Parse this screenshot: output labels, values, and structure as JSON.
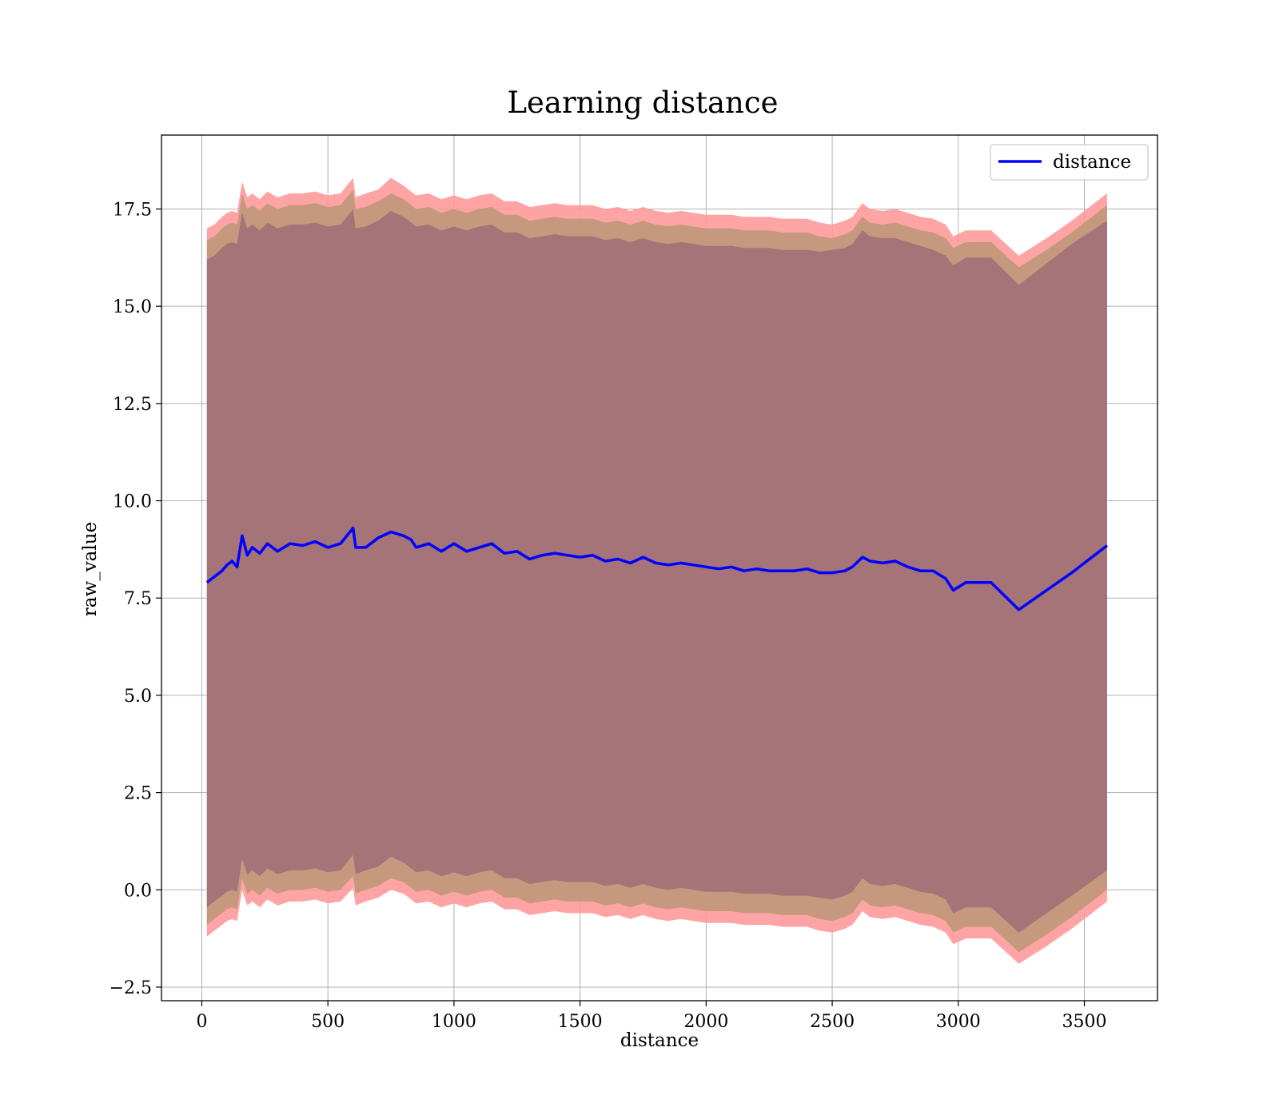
{
  "chart_data": {
    "type": "line",
    "title": "Learning distance",
    "xlabel": "distance",
    "ylabel": "raw_value",
    "xlim": [
      -160,
      3790
    ],
    "ylim": [
      -2.85,
      19.4
    ],
    "xticks": [
      0,
      500,
      1000,
      1500,
      2000,
      2500,
      3000,
      3500
    ],
    "yticks": [
      -2.5,
      0.0,
      2.5,
      5.0,
      7.5,
      10.0,
      12.5,
      15.0,
      17.5
    ],
    "xtick_labels": [
      "0",
      "500",
      "1000",
      "1500",
      "2000",
      "2500",
      "3000",
      "3500"
    ],
    "ytick_labels": [
      "−2.5",
      "0.0",
      "2.5",
      "5.0",
      "7.5",
      "10.0",
      "12.5",
      "15.0",
      "17.5"
    ],
    "grid": true,
    "legend": {
      "position": "upper-right",
      "entries": [
        "distance"
      ]
    },
    "colors": {
      "line": "#0000ff",
      "outer_band": "#ff9a9a",
      "middle_band": "#c0987a",
      "inner_band": "#a07078",
      "grid": "#b0b0b0"
    },
    "series": [
      {
        "name": "distance",
        "x": [
          20,
          50,
          80,
          100,
          120,
          140,
          160,
          180,
          200,
          230,
          260,
          300,
          350,
          400,
          450,
          500,
          550,
          600,
          610,
          650,
          700,
          750,
          800,
          830,
          850,
          900,
          950,
          1000,
          1050,
          1100,
          1150,
          1200,
          1250,
          1300,
          1350,
          1400,
          1450,
          1500,
          1550,
          1600,
          1650,
          1700,
          1750,
          1800,
          1850,
          1900,
          1950,
          2000,
          2050,
          2100,
          2150,
          2200,
          2250,
          2300,
          2350,
          2400,
          2450,
          2500,
          2550,
          2580,
          2620,
          2650,
          2700,
          2750,
          2800,
          2850,
          2900,
          2950,
          2980,
          3030,
          3130,
          3240,
          3350,
          3450,
          3590
        ],
        "y": [
          7.9,
          8.05,
          8.2,
          8.35,
          8.45,
          8.3,
          9.1,
          8.6,
          8.8,
          8.65,
          8.9,
          8.7,
          8.9,
          8.85,
          8.95,
          8.8,
          8.9,
          9.3,
          8.8,
          8.8,
          9.05,
          9.2,
          9.1,
          9.0,
          8.8,
          8.9,
          8.7,
          8.9,
          8.7,
          8.8,
          8.9,
          8.65,
          8.7,
          8.5,
          8.6,
          8.65,
          8.6,
          8.55,
          8.6,
          8.45,
          8.5,
          8.4,
          8.55,
          8.4,
          8.35,
          8.4,
          8.35,
          8.3,
          8.25,
          8.3,
          8.2,
          8.25,
          8.2,
          8.2,
          8.2,
          8.25,
          8.15,
          8.15,
          8.2,
          8.3,
          8.55,
          8.45,
          8.4,
          8.45,
          8.3,
          8.2,
          8.2,
          8.0,
          7.7,
          7.9,
          7.9,
          7.2,
          7.7,
          8.15,
          8.85
        ]
      }
    ],
    "bands": [
      {
        "upper": [
          17.0,
          17.1,
          17.3,
          17.4,
          17.45,
          17.4,
          18.2,
          17.8,
          17.9,
          17.75,
          17.95,
          17.8,
          17.9,
          17.9,
          17.95,
          17.85,
          17.9,
          18.3,
          17.8,
          17.9,
          18.0,
          18.3,
          18.1,
          17.95,
          17.85,
          17.9,
          17.75,
          17.85,
          17.75,
          17.85,
          17.9,
          17.7,
          17.7,
          17.55,
          17.6,
          17.65,
          17.6,
          17.6,
          17.6,
          17.5,
          17.55,
          17.45,
          17.55,
          17.45,
          17.4,
          17.45,
          17.4,
          17.35,
          17.35,
          17.35,
          17.3,
          17.3,
          17.3,
          17.25,
          17.25,
          17.25,
          17.15,
          17.1,
          17.2,
          17.3,
          17.65,
          17.5,
          17.45,
          17.5,
          17.4,
          17.3,
          17.25,
          17.1,
          16.8,
          16.95,
          16.95,
          16.3,
          16.75,
          17.2,
          17.9
        ],
        "lower": [
          -1.2,
          -1.05,
          -0.9,
          -0.8,
          -0.75,
          -0.8,
          0.0,
          -0.4,
          -0.3,
          -0.45,
          -0.25,
          -0.4,
          -0.3,
          -0.3,
          -0.25,
          -0.35,
          -0.3,
          0.05,
          -0.4,
          -0.3,
          -0.2,
          0.0,
          -0.1,
          -0.25,
          -0.35,
          -0.3,
          -0.45,
          -0.35,
          -0.45,
          -0.35,
          -0.3,
          -0.5,
          -0.5,
          -0.65,
          -0.6,
          -0.55,
          -0.6,
          -0.6,
          -0.6,
          -0.7,
          -0.65,
          -0.75,
          -0.65,
          -0.75,
          -0.8,
          -0.75,
          -0.8,
          -0.85,
          -0.85,
          -0.85,
          -0.9,
          -0.9,
          -0.9,
          -0.95,
          -0.95,
          -0.95,
          -1.05,
          -1.1,
          -1.0,
          -0.9,
          -0.55,
          -0.7,
          -0.75,
          -0.7,
          -0.8,
          -0.9,
          -0.95,
          -1.1,
          -1.4,
          -1.25,
          -1.25,
          -1.9,
          -1.45,
          -1.0,
          -0.3
        ]
      },
      {
        "upper": [
          16.7,
          16.8,
          17.0,
          17.1,
          17.15,
          17.1,
          17.9,
          17.5,
          17.6,
          17.45,
          17.65,
          17.5,
          17.6,
          17.6,
          17.65,
          17.55,
          17.6,
          18.0,
          17.5,
          17.55,
          17.7,
          17.9,
          17.75,
          17.6,
          17.5,
          17.55,
          17.4,
          17.5,
          17.4,
          17.5,
          17.55,
          17.35,
          17.35,
          17.2,
          17.25,
          17.3,
          17.25,
          17.25,
          17.25,
          17.15,
          17.2,
          17.1,
          17.2,
          17.1,
          17.05,
          17.1,
          17.05,
          17.0,
          17.0,
          17.0,
          16.95,
          16.95,
          16.95,
          16.9,
          16.9,
          16.9,
          16.8,
          16.75,
          16.85,
          16.95,
          17.3,
          17.15,
          17.1,
          17.15,
          17.05,
          16.95,
          16.9,
          16.75,
          16.5,
          16.65,
          16.65,
          16.0,
          16.45,
          16.9,
          17.6
        ],
        "lower": [
          -0.9,
          -0.75,
          -0.6,
          -0.5,
          -0.45,
          -0.5,
          0.3,
          -0.1,
          0.0,
          -0.15,
          0.05,
          -0.1,
          0.0,
          0.0,
          0.05,
          -0.05,
          0.0,
          0.35,
          -0.1,
          0.0,
          0.1,
          0.3,
          0.2,
          0.05,
          -0.05,
          0.0,
          -0.15,
          -0.05,
          -0.15,
          -0.05,
          0.0,
          -0.2,
          -0.2,
          -0.35,
          -0.3,
          -0.25,
          -0.3,
          -0.3,
          -0.3,
          -0.4,
          -0.35,
          -0.45,
          -0.35,
          -0.45,
          -0.5,
          -0.45,
          -0.5,
          -0.55,
          -0.55,
          -0.55,
          -0.6,
          -0.6,
          -0.6,
          -0.65,
          -0.65,
          -0.65,
          -0.75,
          -0.8,
          -0.7,
          -0.6,
          -0.25,
          -0.4,
          -0.45,
          -0.4,
          -0.5,
          -0.6,
          -0.65,
          -0.8,
          -1.1,
          -0.95,
          -0.95,
          -1.6,
          -1.15,
          -0.7,
          0.0
        ]
      },
      {
        "upper": [
          16.2,
          16.3,
          16.5,
          16.6,
          16.65,
          16.6,
          17.4,
          17.0,
          17.1,
          16.95,
          17.15,
          17.0,
          17.1,
          17.1,
          17.15,
          17.05,
          17.1,
          17.5,
          17.0,
          17.05,
          17.2,
          17.45,
          17.3,
          17.15,
          17.05,
          17.1,
          16.95,
          17.05,
          16.95,
          17.05,
          17.1,
          16.9,
          16.9,
          16.75,
          16.8,
          16.85,
          16.8,
          16.8,
          16.8,
          16.7,
          16.75,
          16.65,
          16.75,
          16.65,
          16.6,
          16.65,
          16.6,
          16.55,
          16.55,
          16.55,
          16.5,
          16.5,
          16.5,
          16.45,
          16.45,
          16.45,
          16.4,
          16.45,
          16.5,
          16.6,
          16.95,
          16.8,
          16.75,
          16.75,
          16.65,
          16.55,
          16.45,
          16.3,
          16.05,
          16.25,
          16.25,
          15.55,
          16.1,
          16.6,
          17.2
        ],
        "lower": [
          -0.45,
          -0.3,
          -0.15,
          -0.05,
          0.0,
          -0.05,
          0.8,
          0.4,
          0.5,
          0.35,
          0.55,
          0.4,
          0.5,
          0.5,
          0.55,
          0.45,
          0.5,
          0.9,
          0.4,
          0.5,
          0.6,
          0.85,
          0.7,
          0.55,
          0.45,
          0.5,
          0.35,
          0.45,
          0.35,
          0.45,
          0.5,
          0.3,
          0.3,
          0.15,
          0.2,
          0.25,
          0.2,
          0.2,
          0.2,
          0.1,
          0.15,
          0.05,
          0.15,
          0.05,
          0.0,
          0.05,
          0.0,
          -0.05,
          -0.05,
          -0.05,
          -0.1,
          -0.1,
          -0.1,
          -0.15,
          -0.15,
          -0.15,
          -0.2,
          -0.25,
          -0.15,
          -0.05,
          0.3,
          0.15,
          0.1,
          0.15,
          0.05,
          -0.05,
          -0.1,
          -0.25,
          -0.6,
          -0.45,
          -0.45,
          -1.1,
          -0.6,
          -0.15,
          0.5
        ]
      }
    ]
  }
}
